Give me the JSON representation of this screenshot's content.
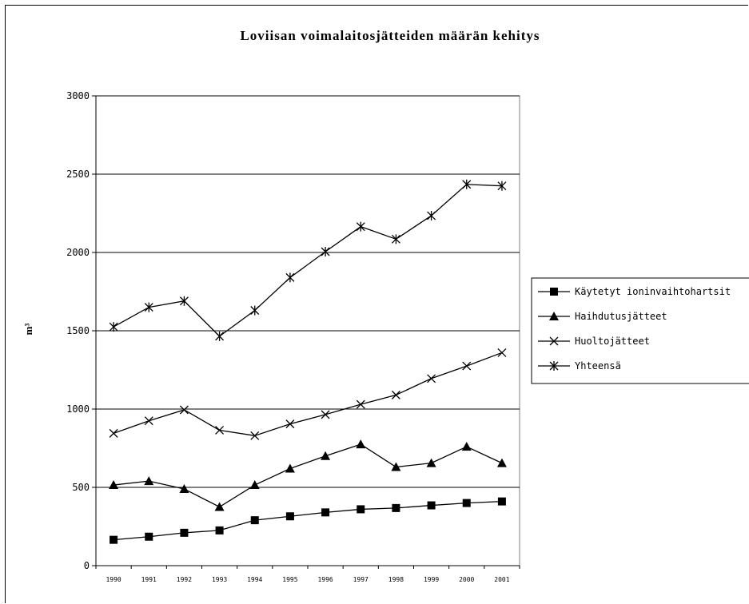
{
  "chart_data": {
    "type": "line",
    "title": "Loviisan voimalaitosjätteiden määrän kehitys",
    "ylabel": "m³",
    "xlabel": "",
    "ylim": [
      0,
      3000
    ],
    "yticks": [
      0,
      500,
      1000,
      1500,
      2000,
      2500,
      3000
    ],
    "categories": [
      "1990",
      "1991",
      "1992",
      "1993",
      "1994",
      "1995",
      "1996",
      "1997",
      "1998",
      "1999",
      "2000",
      "2001"
    ],
    "grid": true,
    "legend_position": "right",
    "series": [
      {
        "name": "Käytetyt ioninvaihtohartsit",
        "marker": "square",
        "values": [
          165,
          185,
          210,
          225,
          290,
          315,
          340,
          360,
          368,
          385,
          400,
          410
        ]
      },
      {
        "name": "Haihdutusjätteet",
        "marker": "triangle",
        "values": [
          515,
          540,
          490,
          375,
          515,
          620,
          700,
          775,
          630,
          655,
          760,
          655
        ]
      },
      {
        "name": "Huoltojätteet",
        "marker": "x",
        "values": [
          845,
          925,
          995,
          865,
          830,
          905,
          965,
          1030,
          1090,
          1195,
          1275,
          1360
        ]
      },
      {
        "name": "Yhteensä",
        "marker": "star",
        "values": [
          1525,
          1650,
          1690,
          1465,
          1630,
          1840,
          2005,
          2165,
          2085,
          2235,
          2435,
          2425
        ]
      }
    ]
  }
}
